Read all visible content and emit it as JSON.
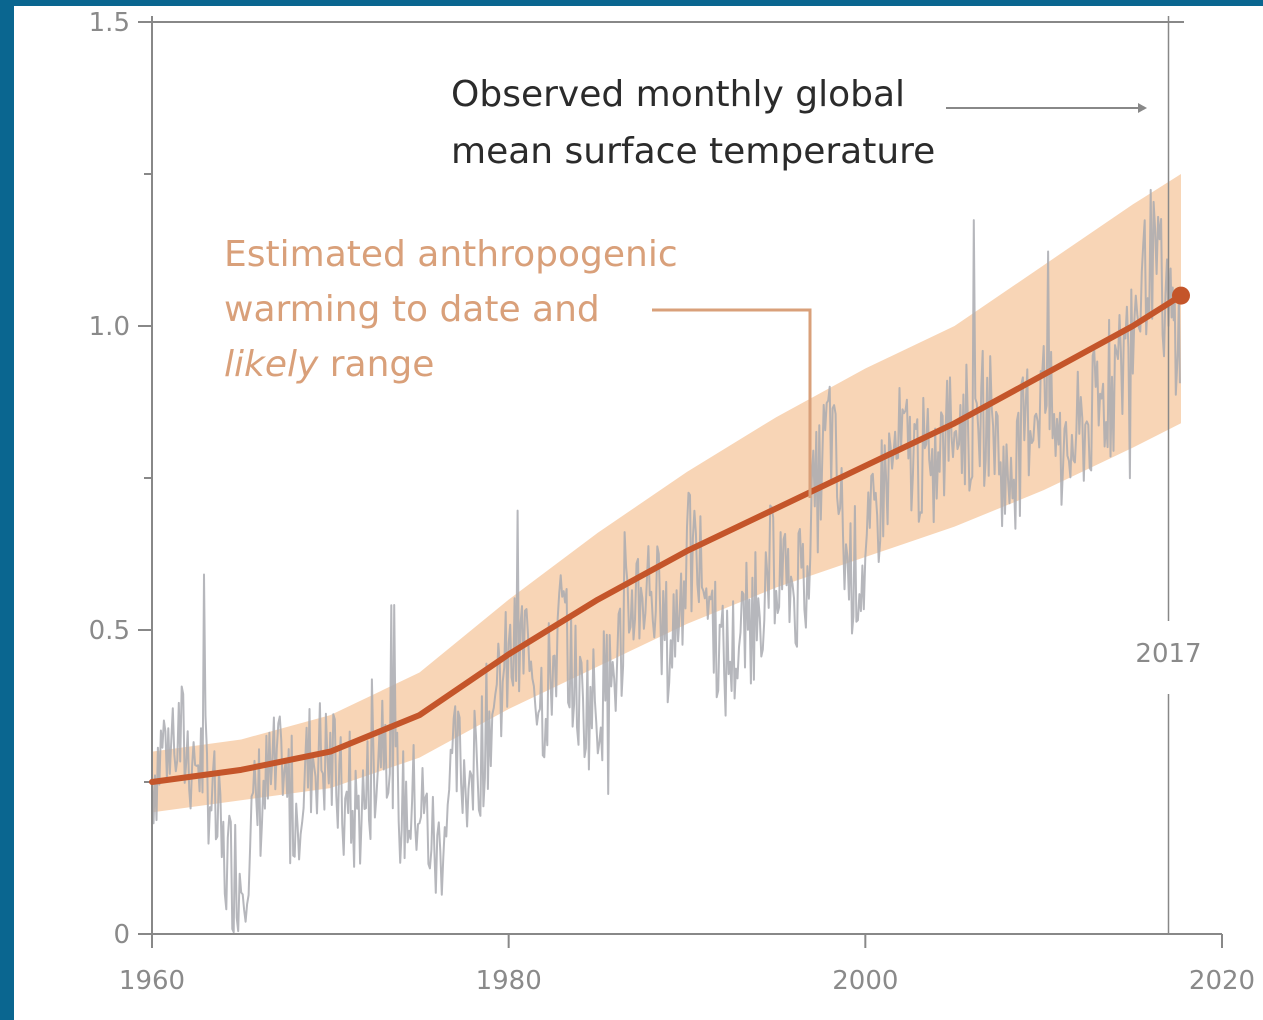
{
  "chart_data": {
    "type": "line",
    "title": "",
    "xlabel": "",
    "ylabel": "",
    "xlim": [
      1960,
      2020
    ],
    "ylim": [
      0,
      1.5
    ],
    "x_ticks": [
      1960,
      1980,
      2000,
      2020
    ],
    "y_ticks": [
      0,
      0.5,
      1.0,
      1.5
    ],
    "y_tick_labels": [
      "0",
      "0.5",
      "1.0",
      "1.5"
    ],
    "minor_y_ticks": [
      0.25,
      0.75,
      1.25
    ],
    "grid": false,
    "marker_year": 2017,
    "marker_label": "2017",
    "colors": {
      "observed": "#a9aab0",
      "anthropogenic": "#c4552a",
      "likely_range": "#f6c79e",
      "axis": "#888888"
    },
    "series": [
      {
        "label": "Observed monthly global mean surface temperature",
        "style": "noisy-line",
        "x": [
          1960,
          1961,
          1962,
          1963,
          1964,
          1965,
          1966,
          1967,
          1968,
          1969,
          1970,
          1971,
          1972,
          1973,
          1974,
          1975,
          1976,
          1977,
          1978,
          1979,
          1980,
          1981,
          1982,
          1983,
          1984,
          1985,
          1986,
          1987,
          1988,
          1989,
          1990,
          1991,
          1992,
          1993,
          1994,
          1995,
          1996,
          1997,
          1998,
          1999,
          2000,
          2001,
          2002,
          2003,
          2004,
          2005,
          2006,
          2007,
          2008,
          2009,
          2010,
          2011,
          2012,
          2013,
          2014,
          2015,
          2016,
          2017,
          2017.7
        ],
        "y": [
          0.26,
          0.34,
          0.3,
          0.28,
          0.12,
          0.1,
          0.22,
          0.26,
          0.2,
          0.3,
          0.28,
          0.18,
          0.22,
          0.36,
          0.2,
          0.22,
          0.12,
          0.28,
          0.26,
          0.36,
          0.44,
          0.48,
          0.38,
          0.52,
          0.38,
          0.38,
          0.44,
          0.56,
          0.58,
          0.46,
          0.62,
          0.6,
          0.44,
          0.48,
          0.55,
          0.62,
          0.56,
          0.68,
          0.84,
          0.6,
          0.6,
          0.74,
          0.8,
          0.78,
          0.76,
          0.86,
          0.82,
          0.86,
          0.72,
          0.84,
          0.9,
          0.78,
          0.82,
          0.86,
          0.9,
          1.0,
          1.12,
          1.02,
          0.98
        ]
      },
      {
        "label": "Estimated anthropogenic warming to date and likely range",
        "style": "smooth-line-with-band",
        "x": [
          1960,
          1965,
          1970,
          1975,
          1980,
          1985,
          1990,
          1995,
          2000,
          2005,
          2010,
          2015,
          2017.7
        ],
        "y": [
          0.25,
          0.27,
          0.3,
          0.36,
          0.46,
          0.55,
          0.63,
          0.7,
          0.77,
          0.84,
          0.92,
          1.0,
          1.05
        ],
        "lower": [
          0.2,
          0.22,
          0.24,
          0.29,
          0.37,
          0.44,
          0.51,
          0.57,
          0.62,
          0.67,
          0.73,
          0.8,
          0.84
        ],
        "upper": [
          0.3,
          0.32,
          0.36,
          0.43,
          0.55,
          0.66,
          0.76,
          0.85,
          0.93,
          1.0,
          1.1,
          1.2,
          1.25
        ]
      }
    ],
    "annotations": {
      "observed_lines": [
        "Observed monthly global",
        "mean surface temperature"
      ],
      "anth_line1": "Estimated anthropogenic",
      "anth_line2": "warming to date and",
      "anth_line3_italic": "likely",
      "anth_line3_rest": " range"
    }
  }
}
